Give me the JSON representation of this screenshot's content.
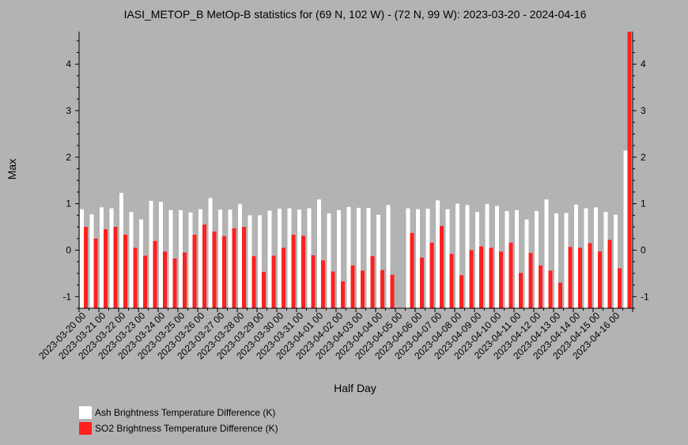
{
  "chart_data": {
    "type": "bar",
    "title": "IASI_METOP_B MetOp-B statistics for (69 N, 102 W) - (72 N, 99 W): 2023-03-20 - 2024-04-16",
    "xlabel": "Half Day",
    "ylabel": "Max",
    "ylim": [
      -1.25,
      4.7
    ],
    "yticks": [
      -1,
      0,
      1,
      2,
      3,
      4
    ],
    "legend_position": "bottom-left",
    "grid": false,
    "categories": [
      "2023-03-20 00",
      "2023-03-20 12",
      "2023-03-21 00",
      "2023-03-21 12",
      "2023-03-22 00",
      "2023-03-22 12",
      "2023-03-23 00",
      "2023-03-23 12",
      "2023-03-24 00",
      "2023-03-24 12",
      "2023-03-25 00",
      "2023-03-25 12",
      "2023-03-26 00",
      "2023-03-26 12",
      "2023-03-27 00",
      "2023-03-27 12",
      "2023-03-28 00",
      "2023-03-28 12",
      "2023-03-29 00",
      "2023-03-29 12",
      "2023-03-30 00",
      "2023-03-30 12",
      "2023-03-31 00",
      "2023-03-31 12",
      "2023-04-01 00",
      "2023-04-01 12",
      "2023-04-02 00",
      "2023-04-02 12",
      "2023-04-03 00",
      "2023-04-03 12",
      "2023-04-04 00",
      "2023-04-04 12",
      "2023-04-05 00",
      "2023-04-05 12",
      "2023-04-06 00",
      "2023-04-06 12",
      "2023-04-07 00",
      "2023-04-07 12",
      "2023-04-08 00",
      "2023-04-08 12",
      "2023-04-09 00",
      "2023-04-09 12",
      "2023-04-10 00",
      "2023-04-10 12",
      "2023-04-11 00",
      "2023-04-11 12",
      "2023-04-12 00",
      "2023-04-12 12",
      "2023-04-13 00",
      "2023-04-13 12",
      "2023-04-14 00",
      "2023-04-14 12",
      "2023-04-15 00",
      "2023-04-15 12",
      "2023-04-16 00",
      "2023-04-16 12"
    ],
    "xtick_labels": [
      "2023-03-20 00",
      "2023-03-21 00",
      "2023-03-22 00",
      "2023-03-23 00",
      "2023-03-24 00",
      "2023-03-25 00",
      "2023-03-26 00",
      "2023-03-27 00",
      "2023-03-28 00",
      "2023-03-29 00",
      "2023-03-30 00",
      "2023-03-31 00",
      "2023-04-01 00",
      "2023-04-02 00",
      "2023-04-03 00",
      "2023-04-04 00",
      "2023-04-05 00",
      "2023-04-06 00",
      "2023-04-07 00",
      "2023-04-08 00",
      "2023-04-09 00",
      "2023-04-10 00",
      "2023-04-11 00",
      "2023-04-12 00",
      "2023-04-13 00",
      "2023-04-14 00",
      "2023-04-15 00",
      "2023-04-16 00"
    ],
    "series": [
      {
        "name": "Ash Brightness Temperature Difference (K)",
        "color": "#ffffff",
        "values": [
          0.88,
          0.77,
          0.92,
          0.9,
          1.23,
          0.82,
          0.66,
          1.06,
          1.04,
          0.86,
          0.86,
          0.81,
          0.88,
          1.12,
          0.87,
          0.87,
          0.99,
          0.75,
          0.75,
          0.85,
          0.89,
          0.9,
          0.87,
          0.9,
          1.09,
          0.79,
          0.86,
          0.93,
          0.91,
          0.91,
          0.76,
          0.97,
          null,
          0.9,
          0.88,
          0.89,
          1.07,
          0.88,
          1.0,
          0.97,
          0.82,
          0.99,
          0.95,
          0.84,
          0.86,
          0.66,
          0.84,
          1.09,
          0.79,
          0.8,
          0.98,
          0.9,
          0.92,
          0.82,
          0.76,
          2.14
        ]
      },
      {
        "name": "SO2 Brightness Temperature Difference (K)",
        "color": "#ff2020",
        "values": [
          0.5,
          0.25,
          0.45,
          0.5,
          0.33,
          0.05,
          -0.12,
          0.2,
          -0.03,
          -0.18,
          -0.05,
          0.33,
          0.55,
          0.4,
          0.3,
          0.47,
          0.5,
          -0.13,
          -0.47,
          -0.12,
          0.05,
          0.33,
          0.31,
          -0.11,
          -0.22,
          -0.46,
          -0.67,
          -0.33,
          -0.44,
          -0.13,
          -0.43,
          -0.53,
          null,
          0.37,
          -0.16,
          0.16,
          0.52,
          -0.08,
          -0.54,
          0.0,
          0.08,
          0.05,
          -0.03,
          0.16,
          -0.49,
          -0.06,
          -0.33,
          -0.44,
          -0.7,
          0.07,
          0.05,
          0.15,
          -0.03,
          0.22,
          -0.39,
          4.7
        ]
      }
    ]
  }
}
